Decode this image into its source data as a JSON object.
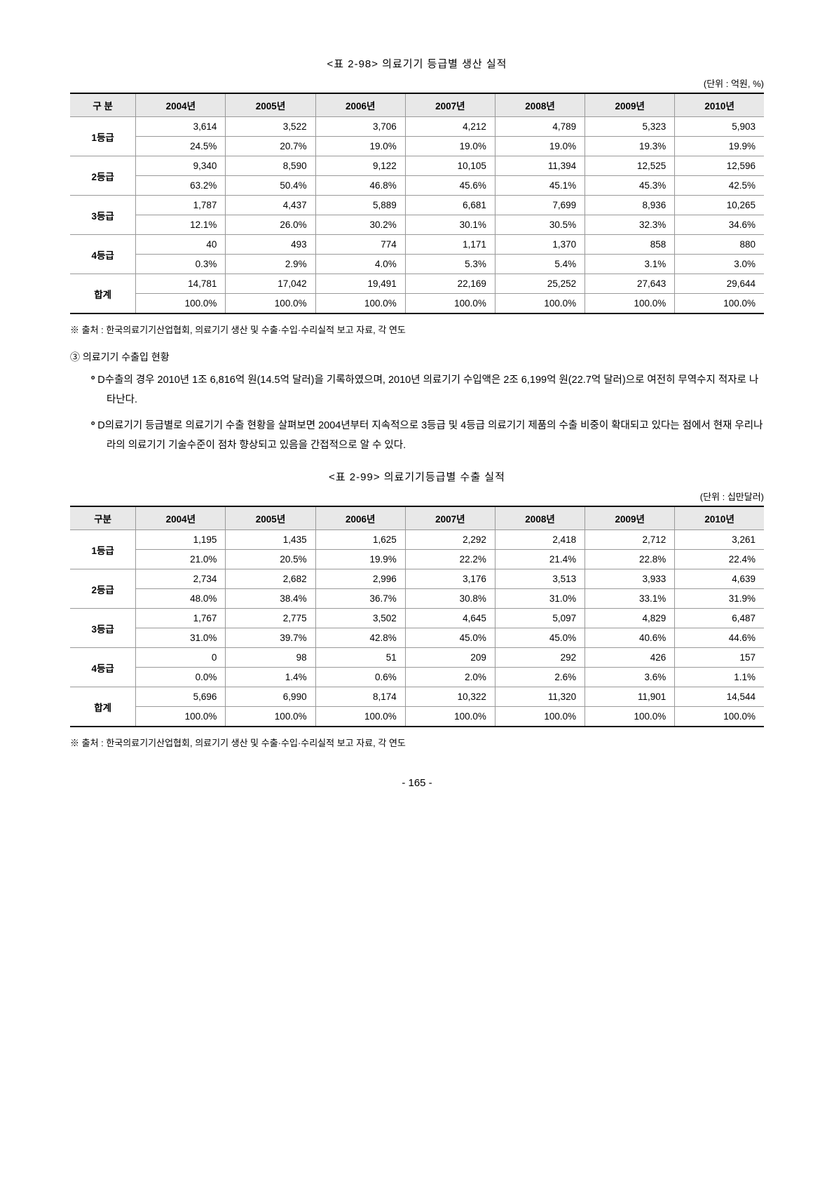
{
  "table1": {
    "title": "<표 2-98> 의료기기 등급별 생산 실적",
    "unit": "(단위 : 억원, %)",
    "headers": [
      "구 분",
      "2004년",
      "2005년",
      "2006년",
      "2007년",
      "2008년",
      "2009년",
      "2010년"
    ],
    "header_bg": "#e8e8e8",
    "border_color": "#999999",
    "thick_border_color": "#000000",
    "rows": [
      {
        "label": "1등급",
        "vals": [
          "3,614",
          "3,522",
          "3,706",
          "4,212",
          "4,789",
          "5,323",
          "5,903"
        ],
        "pcts": [
          "24.5%",
          "20.7%",
          "19.0%",
          "19.0%",
          "19.0%",
          "19.3%",
          "19.9%"
        ]
      },
      {
        "label": "2등급",
        "vals": [
          "9,340",
          "8,590",
          "9,122",
          "10,105",
          "11,394",
          "12,525",
          "12,596"
        ],
        "pcts": [
          "63.2%",
          "50.4%",
          "46.8%",
          "45.6%",
          "45.1%",
          "45.3%",
          "42.5%"
        ]
      },
      {
        "label": "3등급",
        "vals": [
          "1,787",
          "4,437",
          "5,889",
          "6,681",
          "7,699",
          "8,936",
          "10,265"
        ],
        "pcts": [
          "12.1%",
          "26.0%",
          "30.2%",
          "30.1%",
          "30.5%",
          "32.3%",
          "34.6%"
        ]
      },
      {
        "label": "4등급",
        "vals": [
          "40",
          "493",
          "774",
          "1,171",
          "1,370",
          "858",
          "880"
        ],
        "pcts": [
          "0.3%",
          "2.9%",
          "4.0%",
          "5.3%",
          "5.4%",
          "3.1%",
          "3.0%"
        ]
      },
      {
        "label": "합계",
        "vals": [
          "14,781",
          "17,042",
          "19,491",
          "22,169",
          "25,252",
          "27,643",
          "29,644"
        ],
        "pcts": [
          "100.0%",
          "100.0%",
          "100.0%",
          "100.0%",
          "100.0%",
          "100.0%",
          "100.0%"
        ]
      }
    ],
    "source": "※  출처 : 한국의료기기산업협회, 의료기기 생산 및 수출·수입·수리실적 보고 자료, 각 연도"
  },
  "section_heading": "③ 의료기기 수출입 현황",
  "para1": "D수출의 경우 2010년 1조 6,816억 원(14.5억 달러)을 기록하였으며, 2010년 의료기기 수입액은 2조 6,199억 원(22.7억 달러)으로 여전히 무역수지 적자로 나타난다.",
  "para2": "D의료기기 등급별로 의료기기 수출 현황을 살펴보면 2004년부터 지속적으로 3등급 및 4등급 의료기기 제품의 수출 비중이 확대되고 있다는 점에서 현재 우리나라의 의료기기 기술수준이 점차 향상되고 있음을 간접적으로 알 수 있다.",
  "table2": {
    "title": "<표 2-99> 의료기기등급별 수출 실적",
    "unit": "(단위 : 십만달러)",
    "headers": [
      "구분",
      "2004년",
      "2005년",
      "2006년",
      "2007년",
      "2008년",
      "2009년",
      "2010년"
    ],
    "header_bg": "#e8e8e8",
    "border_color": "#999999",
    "thick_border_color": "#000000",
    "rows": [
      {
        "label": "1등급",
        "vals": [
          "1,195",
          "1,435",
          "1,625",
          "2,292",
          "2,418",
          "2,712",
          "3,261"
        ],
        "pcts": [
          "21.0%",
          "20.5%",
          "19.9%",
          "22.2%",
          "21.4%",
          "22.8%",
          "22.4%"
        ]
      },
      {
        "label": "2등급",
        "vals": [
          "2,734",
          "2,682",
          "2,996",
          "3,176",
          "3,513",
          "3,933",
          "4,639"
        ],
        "pcts": [
          "48.0%",
          "38.4%",
          "36.7%",
          "30.8%",
          "31.0%",
          "33.1%",
          "31.9%"
        ]
      },
      {
        "label": "3등급",
        "vals": [
          "1,767",
          "2,775",
          "3,502",
          "4,645",
          "5,097",
          "4,829",
          "6,487"
        ],
        "pcts": [
          "31.0%",
          "39.7%",
          "42.8%",
          "45.0%",
          "45.0%",
          "40.6%",
          "44.6%"
        ]
      },
      {
        "label": "4등급",
        "vals": [
          "0",
          "98",
          "51",
          "209",
          "292",
          "426",
          "157"
        ],
        "pcts": [
          "0.0%",
          "1.4%",
          "0.6%",
          "2.0%",
          "2.6%",
          "3.6%",
          "1.1%"
        ]
      },
      {
        "label": "합계",
        "vals": [
          "5,696",
          "6,990",
          "8,174",
          "10,322",
          "11,320",
          "11,901",
          "14,544"
        ],
        "pcts": [
          "100.0%",
          "100.0%",
          "100.0%",
          "100.0%",
          "100.0%",
          "100.0%",
          "100.0%"
        ]
      }
    ],
    "source": "※  출처 : 한국의료기기산업협회, 의료기기 생산 및 수출·수입·수리실적 보고 자료, 각 연도"
  },
  "page_number": "- 165 -"
}
